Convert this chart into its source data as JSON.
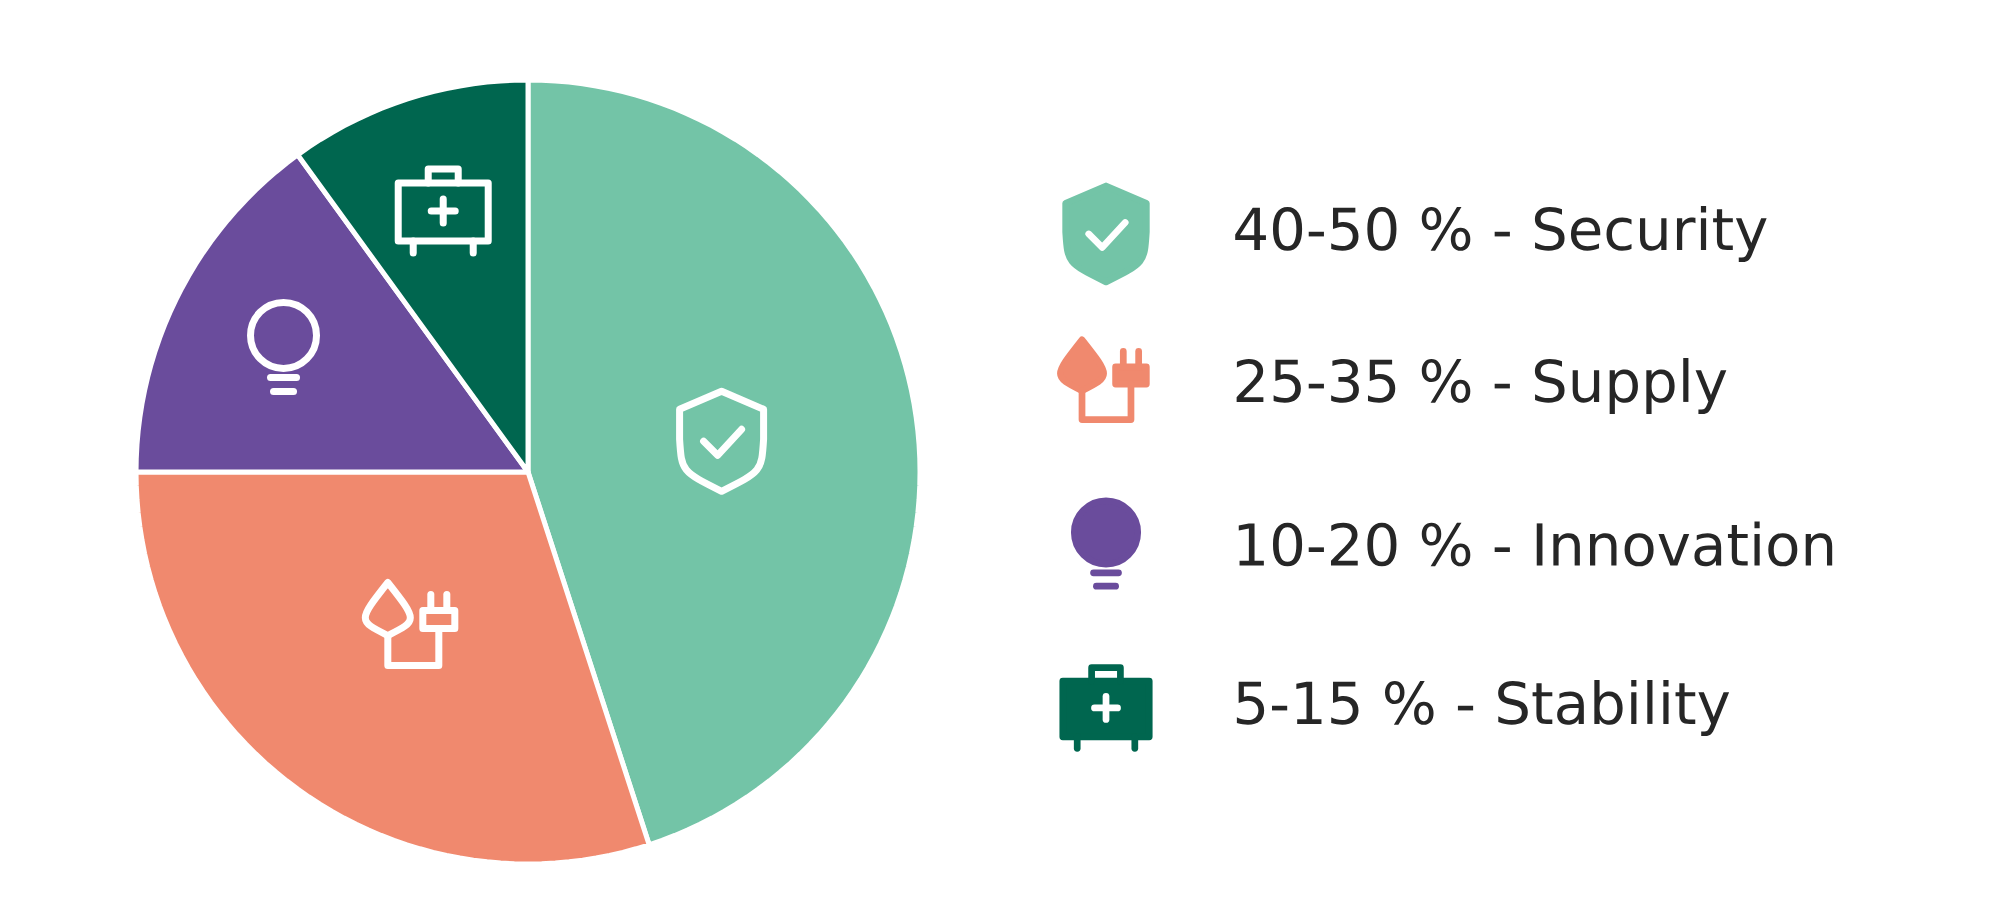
{
  "chart_data": {
    "type": "pie",
    "categories": [
      "40-50 %  - Security",
      "25-35 %  - Supply",
      "10-20 %  - Innovation",
      "5-15 %  - Stability"
    ],
    "values": [
      45,
      30,
      15,
      10
    ],
    "colors": [
      "#73c4a7",
      "#f0896e",
      "#6a4c9c",
      "#00664f"
    ],
    "legend": "right"
  }
}
